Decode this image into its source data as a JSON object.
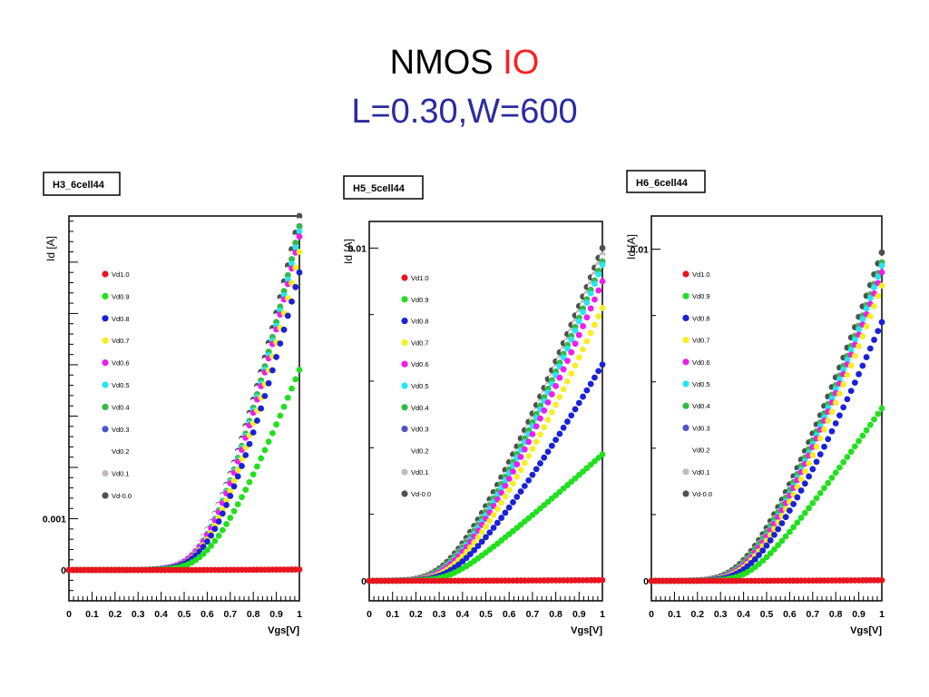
{
  "title": {
    "part1": "NMOS ",
    "part2": "IO",
    "line2": "L=0.30,W=600"
  },
  "colors": {
    "Vd1.0": "#e8141e",
    "Vd0.9": "#22e01e",
    "Vd0.8": "#1a22d8",
    "Vd0.7": "#f6ef22",
    "Vd0.6": "#f01cf0",
    "Vd0.5": "#22e8f0",
    "Vd0.4": "#33bb44",
    "Vd0.3": "#4d55cc",
    "Vd0.2": "#ffffff",
    "Vd0.1": "#c4bcb4",
    "Vd-0.0": "#505050"
  },
  "chart_data": [
    {
      "type": "scatter",
      "label": "H3_6cell44",
      "xlabel": "Vgs[V]",
      "ylabel": "Id [A]",
      "xlim": [
        0,
        1
      ],
      "ylim": [
        -0.0006,
        0.0069
      ],
      "yticks": [
        {
          "v": 0,
          "label": "0"
        },
        {
          "v": 0.001,
          "label": "0.001"
        }
      ],
      "xticks": [
        "0",
        "0.1",
        "0.2",
        "0.3",
        "0.4",
        "0.5",
        "0.6",
        "0.7",
        "0.8",
        "0.9",
        "1"
      ],
      "legend_position": "top-left",
      "series": [
        {
          "name": "Vd1.0",
          "Imax": 1e-05,
          "vth": 0.55,
          "n": 1.3
        },
        {
          "name": "Vd0.9",
          "Imax": 0.0039,
          "vth": 0.54,
          "n": 1.3
        },
        {
          "name": "Vd0.8",
          "Imax": 0.0058,
          "vth": 0.53,
          "n": 1.4
        },
        {
          "name": "Vd0.7",
          "Imax": 0.0062,
          "vth": 0.53,
          "n": 1.4
        },
        {
          "name": "Vd0.6",
          "Imax": 0.0065,
          "vth": 0.52,
          "n": 1.4
        },
        {
          "name": "Vd0.5",
          "Imax": 0.0066,
          "vth": 0.52,
          "n": 1.4
        },
        {
          "name": "Vd0.4",
          "Imax": 0.0067,
          "vth": 0.52,
          "n": 1.4
        },
        {
          "name": "Vd0.3",
          "Imax": 0.0067,
          "vth": 0.52,
          "n": 1.4
        },
        {
          "name": "Vd0.2",
          "Imax": 0.0068,
          "vth": 0.51,
          "n": 1.4
        },
        {
          "name": "Vd0.1",
          "Imax": 0.0068,
          "vth": 0.51,
          "n": 1.4
        },
        {
          "name": "Vd-0.0",
          "Imax": 0.0069,
          "vth": 0.51,
          "n": 1.4
        }
      ]
    },
    {
      "type": "scatter",
      "label": "H5_5cell44",
      "xlabel": "Vgs[V]",
      "ylabel": "Id [A]",
      "xlim": [
        0,
        1
      ],
      "ylim": [
        -0.0006,
        0.0108
      ],
      "yticks": [
        {
          "v": 0,
          "label": "0"
        },
        {
          "v": 0.01,
          "label": "0.01"
        }
      ],
      "xticks": [
        "0",
        "0.1",
        "0.2",
        "0.3",
        "0.4",
        "0.5",
        "0.6",
        "0.7",
        "0.8",
        "0.9",
        "1"
      ],
      "legend_position": "top-left",
      "series": [
        {
          "name": "Vd1.0",
          "Imax": 2e-05,
          "vth": 0.3,
          "n": 1.2
        },
        {
          "name": "Vd0.9",
          "Imax": 0.0038,
          "vth": 0.33,
          "n": 1.1
        },
        {
          "name": "Vd0.8",
          "Imax": 0.0065,
          "vth": 0.31,
          "n": 1.25
        },
        {
          "name": "Vd0.7",
          "Imax": 0.0082,
          "vth": 0.3,
          "n": 1.3
        },
        {
          "name": "Vd0.6",
          "Imax": 0.009,
          "vth": 0.29,
          "n": 1.3
        },
        {
          "name": "Vd0.5",
          "Imax": 0.0095,
          "vth": 0.29,
          "n": 1.3
        },
        {
          "name": "Vd0.4",
          "Imax": 0.0096,
          "vth": 0.28,
          "n": 1.3
        },
        {
          "name": "Vd0.3",
          "Imax": 0.0096,
          "vth": 0.28,
          "n": 1.3
        },
        {
          "name": "Vd0.2",
          "Imax": 0.0097,
          "vth": 0.28,
          "n": 1.3
        },
        {
          "name": "Vd0.1",
          "Imax": 0.0098,
          "vth": 0.28,
          "n": 1.3
        },
        {
          "name": "Vd-0.0",
          "Imax": 0.01,
          "vth": 0.27,
          "n": 1.3
        }
      ]
    },
    {
      "type": "scatter",
      "label": "H6_6cell44",
      "xlabel": "Vgs[V]",
      "ylabel": "Id [A]",
      "xlim": [
        0,
        1
      ],
      "ylim": [
        -0.0006,
        0.011
      ],
      "yticks": [
        {
          "v": 0,
          "label": "0"
        },
        {
          "v": 0.01,
          "label": "0.01"
        }
      ],
      "xticks": [
        "0",
        "0.1",
        "0.2",
        "0.3",
        "0.4",
        "0.5",
        "0.6",
        "0.7",
        "0.8",
        "0.9",
        "1"
      ],
      "legend_position": "top-left",
      "series": [
        {
          "name": "Vd1.0",
          "Imax": 2e-05,
          "vth": 0.35,
          "n": 1.2
        },
        {
          "name": "Vd0.9",
          "Imax": 0.0052,
          "vth": 0.4,
          "n": 1.15
        },
        {
          "name": "Vd0.8",
          "Imax": 0.0078,
          "vth": 0.37,
          "n": 1.3
        },
        {
          "name": "Vd0.7",
          "Imax": 0.0089,
          "vth": 0.36,
          "n": 1.35
        },
        {
          "name": "Vd0.6",
          "Imax": 0.0093,
          "vth": 0.35,
          "n": 1.35
        },
        {
          "name": "Vd0.5",
          "Imax": 0.0095,
          "vth": 0.35,
          "n": 1.35
        },
        {
          "name": "Vd0.4",
          "Imax": 0.0096,
          "vth": 0.34,
          "n": 1.35
        },
        {
          "name": "Vd0.3",
          "Imax": 0.0096,
          "vth": 0.34,
          "n": 1.35
        },
        {
          "name": "Vd0.2",
          "Imax": 0.0097,
          "vth": 0.34,
          "n": 1.35
        },
        {
          "name": "Vd0.1",
          "Imax": 0.0097,
          "vth": 0.34,
          "n": 1.35
        },
        {
          "name": "Vd-0.0",
          "Imax": 0.0099,
          "vth": 0.33,
          "n": 1.35
        }
      ]
    }
  ]
}
